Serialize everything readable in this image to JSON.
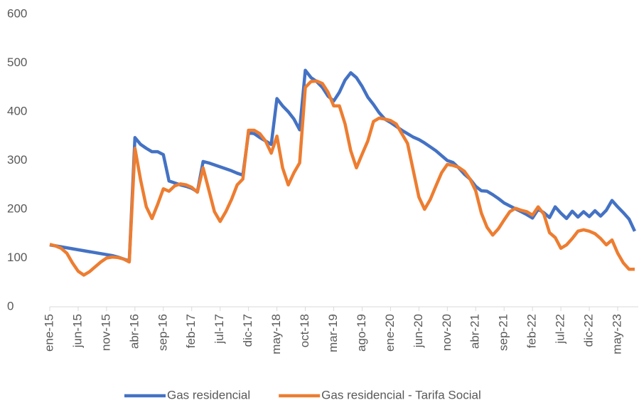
{
  "chart_data": {
    "type": "line",
    "categories": [
      "ene-15",
      null,
      null,
      null,
      null,
      "jun-15",
      null,
      null,
      null,
      null,
      "nov-15",
      null,
      null,
      null,
      null,
      "abr-16",
      null,
      null,
      null,
      null,
      "sep-16",
      null,
      null,
      null,
      null,
      "feb-17",
      null,
      null,
      null,
      null,
      "jul-17",
      null,
      null,
      null,
      null,
      "dic-17",
      null,
      null,
      null,
      null,
      "may-18",
      null,
      null,
      null,
      null,
      "oct-18",
      null,
      null,
      null,
      null,
      "mar-19",
      null,
      null,
      null,
      null,
      "ago-19",
      null,
      null,
      null,
      null,
      "ene-20",
      null,
      null,
      null,
      null,
      "jun-20",
      null,
      null,
      null,
      null,
      "nov-20",
      null,
      null,
      null,
      null,
      "abr-21",
      null,
      null,
      null,
      null,
      "sep-21",
      null,
      null,
      null,
      null,
      "feb-22",
      null,
      null,
      null,
      null,
      "jul-22",
      null,
      null,
      null,
      null,
      "dic-22",
      null,
      null,
      null,
      null,
      "may-23",
      null,
      null,
      null
    ],
    "series": [
      {
        "name": "Gas residencial",
        "color": "#4472c4",
        "values": [
          127,
          125,
          123,
          121,
          119,
          117,
          115,
          113,
          111,
          109,
          107,
          105,
          102,
          98,
          94,
          347,
          333,
          325,
          318,
          318,
          312,
          258,
          254,
          250,
          247,
          243,
          236,
          298,
          295,
          291,
          287,
          283,
          279,
          274,
          270,
          357,
          355,
          347,
          340,
          333,
          427,
          412,
          400,
          385,
          363,
          485,
          470,
          462,
          450,
          432,
          422,
          440,
          465,
          480,
          470,
          452,
          430,
          415,
          398,
          385,
          378,
          370,
          362,
          355,
          348,
          343,
          336,
          328,
          320,
          310,
          300,
          296,
          285,
          272,
          262,
          247,
          238,
          237,
          230,
          222,
          213,
          207,
          201,
          195,
          189,
          182,
          200,
          193,
          183,
          205,
          192,
          181,
          196,
          184,
          195,
          185,
          197,
          186,
          198,
          218,
          205,
          193,
          180,
          155
        ]
      },
      {
        "name": "Gas residencial - Tarifa Social",
        "color": "#ed7d31",
        "values": [
          128,
          125,
          120,
          110,
          90,
          73,
          65,
          72,
          82,
          92,
          100,
          102,
          101,
          98,
          92,
          325,
          260,
          205,
          181,
          210,
          242,
          237,
          248,
          252,
          250,
          245,
          235,
          285,
          240,
          195,
          175,
          195,
          220,
          250,
          262,
          362,
          362,
          355,
          340,
          315,
          350,
          285,
          250,
          275,
          295,
          450,
          462,
          463,
          458,
          440,
          412,
          412,
          375,
          320,
          285,
          313,
          340,
          380,
          387,
          385,
          382,
          375,
          355,
          335,
          280,
          225,
          200,
          220,
          248,
          275,
          292,
          290,
          286,
          278,
          262,
          238,
          192,
          163,
          147,
          160,
          178,
          195,
          202,
          198,
          195,
          188,
          205,
          190,
          152,
          142,
          120,
          127,
          140,
          155,
          158,
          155,
          150,
          140,
          127,
          137,
          110,
          90,
          77,
          77
        ]
      }
    ],
    "ylim": [
      0,
      600
    ],
    "yticks": [
      0,
      100,
      200,
      300,
      400,
      500,
      600
    ],
    "grid": false,
    "legend": "bottom"
  }
}
